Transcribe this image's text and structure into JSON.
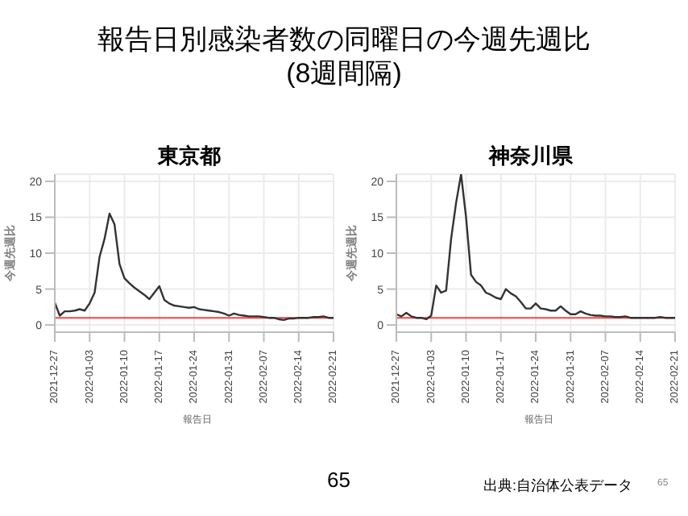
{
  "chart_data": [
    {
      "type": "other",
      "title": "報告日別感染者数の同曜日の今週先週比\n(8週間隔)",
      "annotations": [
        "65",
        "出典:自治体公表データ",
        "65"
      ]
    },
    {
      "type": "line",
      "title": "東京都",
      "xlabel": "報告日",
      "ylabel": "今週先週比",
      "color": "#333333",
      "grid": true,
      "xlim": [
        "2021-12-27",
        "2022-02-21"
      ],
      "xticks": [
        "2021-12-27",
        "2022-01-03",
        "2022-01-10",
        "2022-01-17",
        "2022-01-24",
        "2022-01-31",
        "2022-02-07",
        "2022-02-14",
        "2022-02-21"
      ],
      "ylim": [
        -1,
        21
      ],
      "yticks": [
        0,
        5,
        10,
        15,
        20
      ],
      "ref_lines": [
        {
          "axis": "y",
          "value": 1,
          "color": "#ff4040"
        }
      ],
      "x": [
        "2021-12-27",
        "2021-12-28",
        "2021-12-29",
        "2021-12-30",
        "2021-12-31",
        "2022-01-01",
        "2022-01-02",
        "2022-01-03",
        "2022-01-04",
        "2022-01-05",
        "2022-01-06",
        "2022-01-07",
        "2022-01-08",
        "2022-01-09",
        "2022-01-10",
        "2022-01-11",
        "2022-01-12",
        "2022-01-13",
        "2022-01-14",
        "2022-01-15",
        "2022-01-16",
        "2022-01-17",
        "2022-01-18",
        "2022-01-19",
        "2022-01-20",
        "2022-01-21",
        "2022-01-22",
        "2022-01-23",
        "2022-01-24",
        "2022-01-25",
        "2022-01-26",
        "2022-01-27",
        "2022-01-28",
        "2022-01-29",
        "2022-01-30",
        "2022-01-31",
        "2022-02-01",
        "2022-02-02",
        "2022-02-03",
        "2022-02-04",
        "2022-02-05",
        "2022-02-06",
        "2022-02-07",
        "2022-02-08",
        "2022-02-09",
        "2022-02-10",
        "2022-02-11",
        "2022-02-12",
        "2022-02-13",
        "2022-02-14",
        "2022-02-15",
        "2022-02-16",
        "2022-02-17",
        "2022-02-18",
        "2022-02-19",
        "2022-02-20",
        "2022-02-21"
      ],
      "values": [
        3.1,
        1.3,
        1.9,
        1.9,
        2.0,
        2.2,
        2.0,
        3.0,
        4.5,
        9.5,
        12,
        15.5,
        14,
        8.5,
        6.5,
        5.8,
        5.2,
        4.7,
        4.2,
        3.6,
        4.5,
        5.4,
        3.5,
        3.0,
        2.7,
        2.6,
        2.5,
        2.4,
        2.5,
        2.2,
        2.1,
        2.0,
        1.9,
        1.8,
        1.6,
        1.3,
        1.6,
        1.4,
        1.3,
        1.2,
        1.2,
        1.2,
        1.1,
        1.0,
        1.0,
        0.8,
        0.7,
        0.9,
        0.9,
        1.0,
        1.0,
        1.0,
        1.1,
        1.1,
        1.2,
        1.0,
        1.0
      ]
    },
    {
      "type": "line",
      "title": "神奈川県",
      "xlabel": "報告日",
      "ylabel": "今週先週比",
      "color": "#333333",
      "grid": true,
      "xlim": [
        "2021-12-27",
        "2022-02-21"
      ],
      "xticks": [
        "2021-12-27",
        "2022-01-03",
        "2022-01-10",
        "2022-01-17",
        "2022-01-24",
        "2022-01-31",
        "2022-02-07",
        "2022-02-14",
        "2022-02-21"
      ],
      "ylim": [
        -1,
        21
      ],
      "yticks": [
        0,
        5,
        10,
        15,
        20
      ],
      "ref_lines": [
        {
          "axis": "y",
          "value": 1,
          "color": "#ff4040"
        }
      ],
      "x": [
        "2021-12-27",
        "2021-12-28",
        "2021-12-29",
        "2021-12-30",
        "2021-12-31",
        "2022-01-01",
        "2022-01-02",
        "2022-01-03",
        "2022-01-04",
        "2022-01-05",
        "2022-01-06",
        "2022-01-07",
        "2022-01-08",
        "2022-01-09",
        "2022-01-10",
        "2022-01-11",
        "2022-01-12",
        "2022-01-13",
        "2022-01-14",
        "2022-01-15",
        "2022-01-16",
        "2022-01-17",
        "2022-01-18",
        "2022-01-19",
        "2022-01-20",
        "2022-01-21",
        "2022-01-22",
        "2022-01-23",
        "2022-01-24",
        "2022-01-25",
        "2022-01-26",
        "2022-01-27",
        "2022-01-28",
        "2022-01-29",
        "2022-01-30",
        "2022-01-31",
        "2022-02-01",
        "2022-02-02",
        "2022-02-03",
        "2022-02-04",
        "2022-02-05",
        "2022-02-06",
        "2022-02-07",
        "2022-02-08",
        "2022-02-09",
        "2022-02-10",
        "2022-02-11",
        "2022-02-12",
        "2022-02-13",
        "2022-02-14",
        "2022-02-15",
        "2022-02-16",
        "2022-02-17",
        "2022-02-18",
        "2022-02-19",
        "2022-02-20",
        "2022-02-21"
      ],
      "values": [
        1.5,
        1.2,
        1.7,
        1.2,
        1.0,
        1.0,
        0.8,
        1.3,
        5.5,
        4.5,
        4.8,
        12,
        17,
        21,
        15,
        7,
        6,
        5.5,
        4.5,
        4.2,
        3.8,
        3.6,
        5.0,
        4.4,
        4.0,
        3.2,
        2.3,
        2.3,
        3.0,
        2.3,
        2.2,
        2.0,
        2.0,
        2.6,
        2.0,
        1.5,
        1.5,
        1.9,
        1.6,
        1.4,
        1.3,
        1.3,
        1.2,
        1.2,
        1.1,
        1.1,
        1.2,
        1.0,
        1.0,
        1.0,
        1.0,
        1.0,
        1.0,
        1.1,
        1.0,
        1.0,
        1.0
      ]
    }
  ]
}
